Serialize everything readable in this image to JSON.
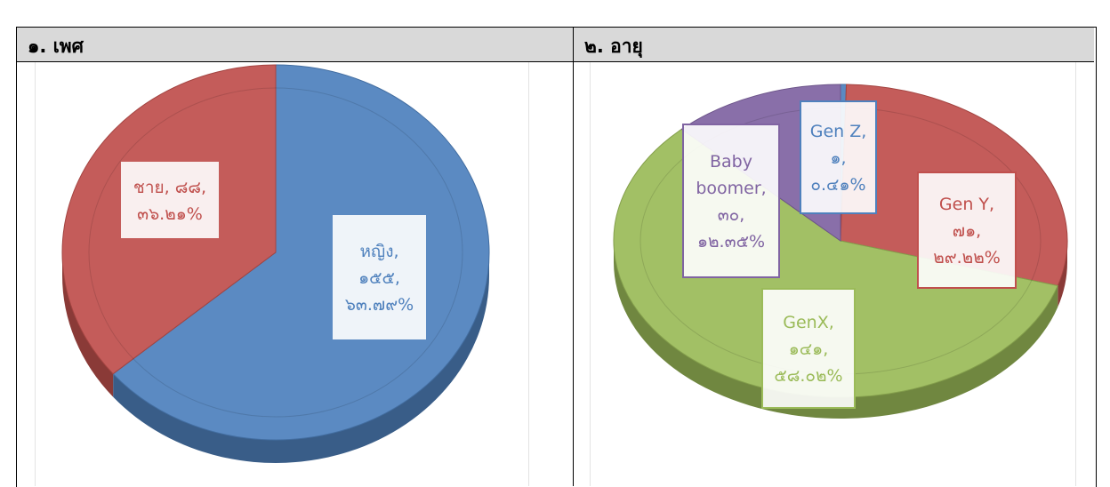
{
  "sections": [
    {
      "heading": "๑. เพศ"
    },
    {
      "heading": "๒. อายุ"
    }
  ],
  "colors": {
    "blue": "#4f81bd",
    "red": "#c0504d",
    "green": "#9bbb59",
    "purple": "#8064a2"
  },
  "chart_data": [
    {
      "type": "pie",
      "title": "",
      "slices": [
        {
          "name": "หญิง",
          "value": 155,
          "percent": 63.79,
          "color": "#4f81bd",
          "label_lines": [
            "หญิง,",
            "๑๕๕,",
            "๖๓.๗๙%"
          ]
        },
        {
          "name": "ชาย",
          "value": 88,
          "percent": 36.21,
          "color": "#c0504d",
          "label_lines": [
            "ชาย, ๘๘,",
            "๓๖.๒๑%"
          ]
        }
      ]
    },
    {
      "type": "pie",
      "title": "",
      "slices": [
        {
          "name": "Gen Z",
          "value": 1,
          "percent": 0.41,
          "color": "#4f81bd",
          "label_lines": [
            "Gen Z,",
            "๑,",
            "๐.๔๑%"
          ]
        },
        {
          "name": "Gen Y",
          "value": 71,
          "percent": 29.22,
          "color": "#c0504d",
          "label_lines": [
            "Gen Y,",
            "๗๑,",
            "๒๙.๒๒%"
          ]
        },
        {
          "name": "GenX",
          "value": 141,
          "percent": 58.02,
          "color": "#9bbb59",
          "label_lines": [
            "GenX,",
            "๑๔๑,",
            "๕๘.๐๒%"
          ]
        },
        {
          "name": "Baby boomer",
          "value": 30,
          "percent": 12.35,
          "color": "#8064a2",
          "label_lines": [
            "Baby",
            "boomer,",
            "๓๐,",
            "๑๒.๓๕%"
          ]
        }
      ]
    }
  ]
}
